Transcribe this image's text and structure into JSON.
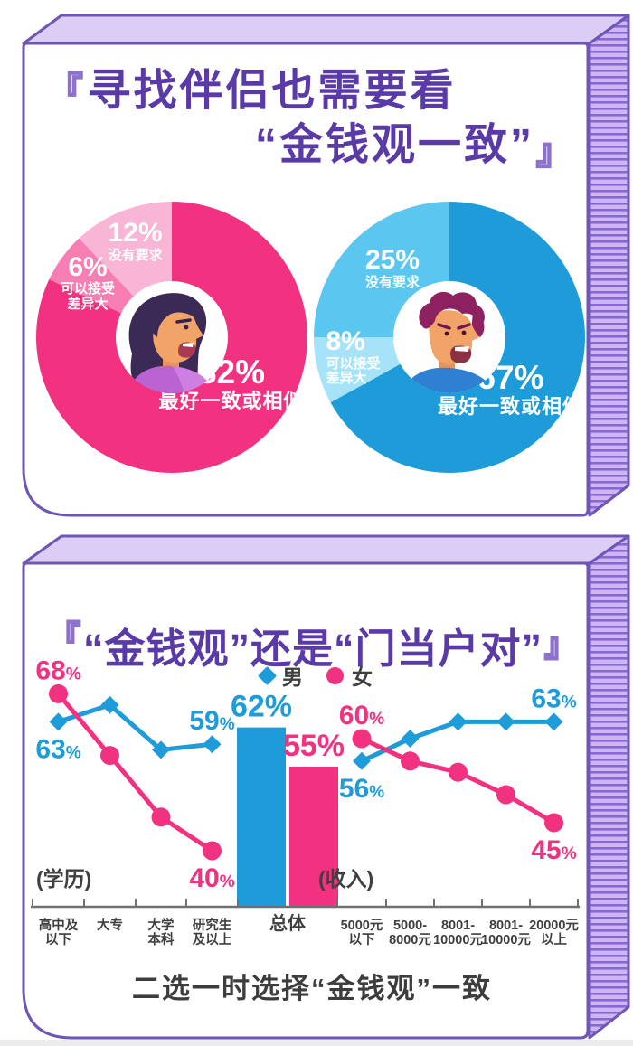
{
  "card1": {
    "bracket_open": "『",
    "bracket_close": "』",
    "title_line1": "寻找伴侣也需要看",
    "title_line2": "“金钱观一致”"
  },
  "card2": {
    "bracket_open": "『",
    "bracket_close": "』",
    "title": "“金钱观”还是“门当户对”",
    "legend": [
      {
        "label": "男",
        "marker": "diamond",
        "color": "#1E9CD9"
      },
      {
        "label": "女",
        "marker": "circle",
        "color": "#F23180"
      }
    ],
    "left_axis_label": "(学历)",
    "right_axis_label": "(收入)",
    "caption": "二选一时选择“金钱观”一致"
  },
  "colors": {
    "title_purple": "#5A3AA6",
    "card_border": "#6F55B5",
    "card_top_face": "#DCCDF5",
    "card_side_light": "#CDB7F2",
    "card_side_dark": "#8A67D2",
    "male_blue": "#1E9CD9",
    "female_pink": "#F23180",
    "text_dark": "#3F3F3F"
  },
  "chart_data": [
    {
      "type": "pie",
      "name": "女",
      "slices": [
        {
          "label": "最好一致或相似",
          "label_lines": [
            "最好一致或相似"
          ],
          "value": 82,
          "color": "#F23180"
        },
        {
          "label": "可以接受差异大",
          "label_lines": [
            "可以接受",
            "差异大"
          ],
          "value": 6,
          "color": "#F67EB2"
        },
        {
          "label": "没有要求",
          "label_lines": [
            "没有要求"
          ],
          "value": 12,
          "color": "#F9B5D6"
        }
      ]
    },
    {
      "type": "pie",
      "name": "男",
      "slices": [
        {
          "label": "最好一致或相似",
          "label_lines": [
            "最好一致或相似"
          ],
          "value": 67,
          "color": "#1E9CD9"
        },
        {
          "label": "可以接受差异大",
          "label_lines": [
            "可以接受",
            "差异大"
          ],
          "value": 8,
          "color": "#A6E3F8"
        },
        {
          "label": "没有要求",
          "label_lines": [
            "没有要求"
          ],
          "value": 25,
          "color": "#5BC7F0"
        }
      ]
    },
    {
      "type": "line+bar",
      "title": "“金钱观”还是“门当户对”",
      "caption": "二选一时选择“金钱观”一致",
      "legend": [
        "男",
        "女"
      ],
      "groups": [
        {
          "name": "学历",
          "categories": [
            "高中及以下",
            "大专",
            "大学本科",
            "研究生及以上"
          ],
          "category_lines": [
            [
              "高中及",
              "以下"
            ],
            [
              "大专"
            ],
            [
              "大学",
              "本科"
            ],
            [
              "研究生",
              "及以上"
            ]
          ],
          "series": [
            {
              "name": "男",
              "marker": "diamond",
              "color": "#1E9CD9",
              "values": [
                63,
                66,
                58,
                59
              ],
              "value_labels": {
                "0": "below",
                "3": "above"
              }
            },
            {
              "name": "女",
              "marker": "circle",
              "color": "#F23180",
              "values": [
                68,
                57,
                46,
                40
              ],
              "value_labels": {
                "0": "above",
                "3": "below"
              }
            }
          ]
        },
        {
          "name": "总体",
          "categories": [
            "总体"
          ],
          "category_lines": [
            [
              "总体"
            ]
          ],
          "bars": [
            {
              "name": "男",
              "value": 62,
              "color": "#1E9CD9"
            },
            {
              "name": "女",
              "value": 55,
              "color": "#F23180"
            }
          ]
        },
        {
          "name": "收入",
          "categories": [
            "5000元以下",
            "5000-8000元",
            "8001-10000元",
            "8001-10000元",
            "20000元以上"
          ],
          "category_lines": [
            [
              "5000元",
              "以下"
            ],
            [
              "5000-",
              "8000元"
            ],
            [
              "8001-",
              "10000元"
            ],
            [
              "8001-",
              "10000元"
            ],
            [
              "20000元",
              "以上"
            ]
          ],
          "series": [
            {
              "name": "男",
              "marker": "diamond",
              "color": "#1E9CD9",
              "values": [
                56,
                60,
                63,
                63,
                63
              ],
              "value_labels": {
                "0": "below",
                "4": "above"
              }
            },
            {
              "name": "女",
              "marker": "circle",
              "color": "#F23180",
              "values": [
                60,
                56,
                54,
                50,
                45
              ],
              "value_labels": {
                "0": "above",
                "4": "below"
              }
            }
          ]
        }
      ]
    }
  ]
}
